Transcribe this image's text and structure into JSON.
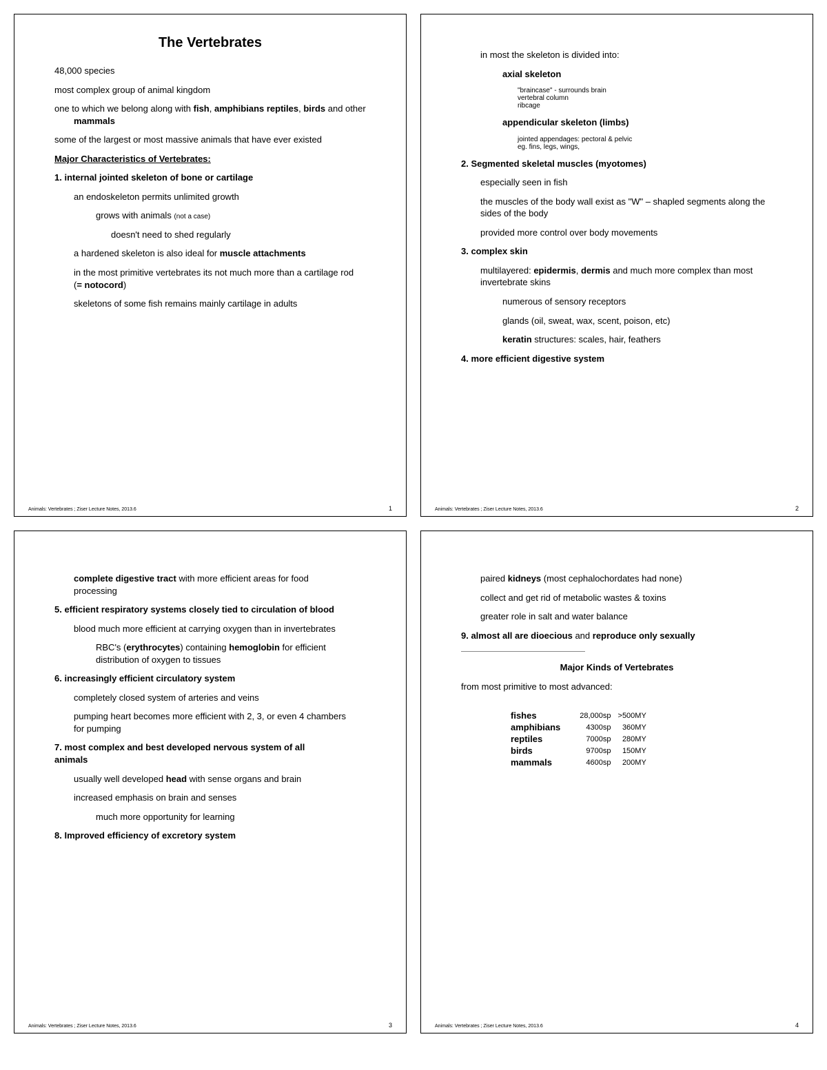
{
  "doc": {
    "footer_text": "Animals: Vertebrates ; Ziser Lecture Notes, 2013.6",
    "title": "The Vertebrates",
    "p1": {
      "species": "48,000 species",
      "complex": "most complex group of animal kingdom",
      "belong_pre": "one to which we belong along with ",
      "belong_b1": "fish",
      "belong_mid1": ", ",
      "belong_b2": "amphibians reptiles",
      "belong_mid2": ", ",
      "belong_b3": "birds",
      "belong_mid3": " and other ",
      "belong_b4": "mammals",
      "massive": "some of the largest or most massive animals that have ever existed",
      "major_char": "Major Characteristics of Vertebrates:",
      "c1": "1.  internal jointed skeleton of bone or cartilage",
      "c1a": "an endoskeleton permits unlimited growth",
      "c1b": "grows with animals ",
      "c1b_small": "(not a case)",
      "c1c": "doesn't need to shed regularly",
      "c1d_pre": "a hardened skeleton is also ideal for ",
      "c1d_b": "muscle attachments",
      "c1e_pre": "in the most primitive vertebrates its not much more than a cartilage rod (",
      "c1e_b": "= notocord",
      "c1e_post": ")",
      "c1f": "skeletons of some fish remains mainly cartilage in adults"
    },
    "p2": {
      "intro": "in most the skeleton is divided into:",
      "axial": "axial skeleton",
      "ax1": "\"braincase\" - surrounds brain",
      "ax2": "vertebral column",
      "ax3": "ribcage",
      "append": "appendicular skeleton (limbs)",
      "ap1": "jointed appendages:  pectoral & pelvic",
      "ap2": "eg. fins, legs, wings,",
      "c2": "2.  Segmented skeletal muscles (myotomes)",
      "c2a": "especially seen in fish",
      "c2b": "the muscles of the body wall exist as \"W\" – shapled segments along the sides of the body",
      "c2c": "provided more control over body movements",
      "c3": "3.  complex skin",
      "c3a_pre": "multilayered:  ",
      "c3a_b1": "epidermis",
      "c3a_mid": ", ",
      "c3a_b2": "dermis",
      "c3a_post": " and much more complex than most invertebrate skins",
      "c3b": "numerous of sensory receptors",
      "c3c": "glands (oil, sweat, wax, scent, poison, etc)",
      "c3d_b": "keratin",
      "c3d_post": " structures: scales, hair, feathers",
      "c4": "4.  more efficient digestive system"
    },
    "p3": {
      "c4a_b": "complete digestive tract",
      "c4a_post": " with more efficient areas for food processing",
      "c5": "5.  efficient respiratory systems closely tied to circulation of blood",
      "c5a": "blood much more efficient at carrying oxygen than in invertebrates",
      "c5b_pre": "RBC's (",
      "c5b_b1": "erythrocytes",
      "c5b_mid": ") containing ",
      "c5b_b2": "hemoglobin",
      "c5b_post": " for efficient distribution of oxygen to tissues",
      "c6": "6.  increasingly efficient circulatory system",
      "c6a": "completely closed system of arteries and veins",
      "c6b": "pumping heart becomes more efficient with 2, 3, or even 4 chambers for pumping",
      "c7": "7.  most complex and best developed nervous system of all animals",
      "c7a_pre": "usually well developed ",
      "c7a_b": "head",
      "c7a_post": " with sense organs and brain",
      "c7b": "increased emphasis on brain and senses",
      "c7c": "much more opportunity for learning",
      "c8": "8.  Improved efficiency of excretory system"
    },
    "p4": {
      "c8a_pre": "paired ",
      "c8a_b": "kidneys",
      "c8a_post": " (most cephalochordates had none)",
      "c8b": "collect and get rid of metabolic wastes & toxins",
      "c8c": "greater role in salt and water balance",
      "c9_pre": "9.  almost all are dioecious",
      "c9_mid": " and ",
      "c9_b2": "reproduce only sexually",
      "kinds_title": "Major Kinds of Vertebrates",
      "kinds_sub": "from most primitive to most advanced:",
      "rows": [
        {
          "name": "fishes",
          "sp": "28,000sp",
          "my": ">500MY"
        },
        {
          "name": "amphibians",
          "sp": "4300sp",
          "my": "360MY"
        },
        {
          "name": "reptiles",
          "sp": "7000sp",
          "my": "280MY"
        },
        {
          "name": "birds",
          "sp": "9700sp",
          "my": "150MY"
        },
        {
          "name": "mammals",
          "sp": "4600sp",
          "my": "200MY"
        }
      ]
    },
    "pagenums": {
      "p1": "1",
      "p2": "2",
      "p3": "3",
      "p4": "4"
    }
  }
}
